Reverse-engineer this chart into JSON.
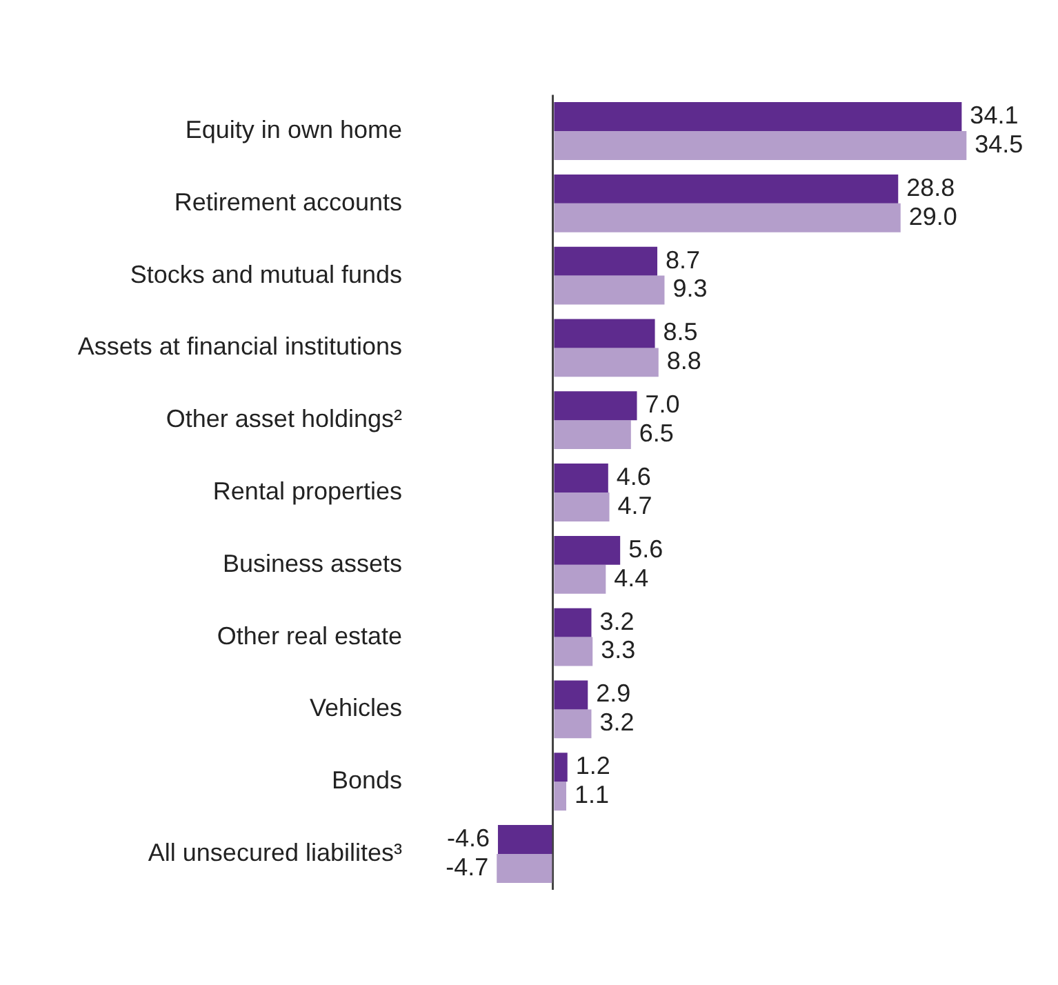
{
  "chart_data": {
    "type": "bar",
    "orientation": "horizontal",
    "legend": false,
    "grid": false,
    "categories": [
      "Equity in own home",
      "Retirement accounts",
      "Stocks and mutual funds",
      "Assets at financial institutions",
      "Other asset holdings²",
      "Rental properties",
      "Business assets",
      "Other real estate",
      "Vehicles",
      "Bonds",
      "All unsecured liabilites³"
    ],
    "series": [
      {
        "color": "#5e2b8e",
        "values": [
          34.1,
          28.8,
          8.7,
          8.5,
          7.0,
          4.6,
          5.6,
          3.2,
          2.9,
          1.2,
          -4.6
        ],
        "value_labels": [
          "34.1",
          "28.8",
          "8.7",
          "8.5",
          "7.0",
          "4.6",
          "5.6",
          "3.2",
          "2.9",
          "1.2",
          "-4.6"
        ]
      },
      {
        "color": "#b49ecb",
        "values": [
          34.5,
          29.0,
          9.3,
          8.8,
          6.5,
          4.7,
          4.4,
          3.3,
          3.2,
          1.1,
          -4.7
        ],
        "value_labels": [
          "34.5",
          "29.0",
          "9.3",
          "8.8",
          "6.5",
          "4.7",
          "4.4",
          "3.3",
          "3.2",
          "1.1",
          "-4.7"
        ]
      }
    ]
  }
}
